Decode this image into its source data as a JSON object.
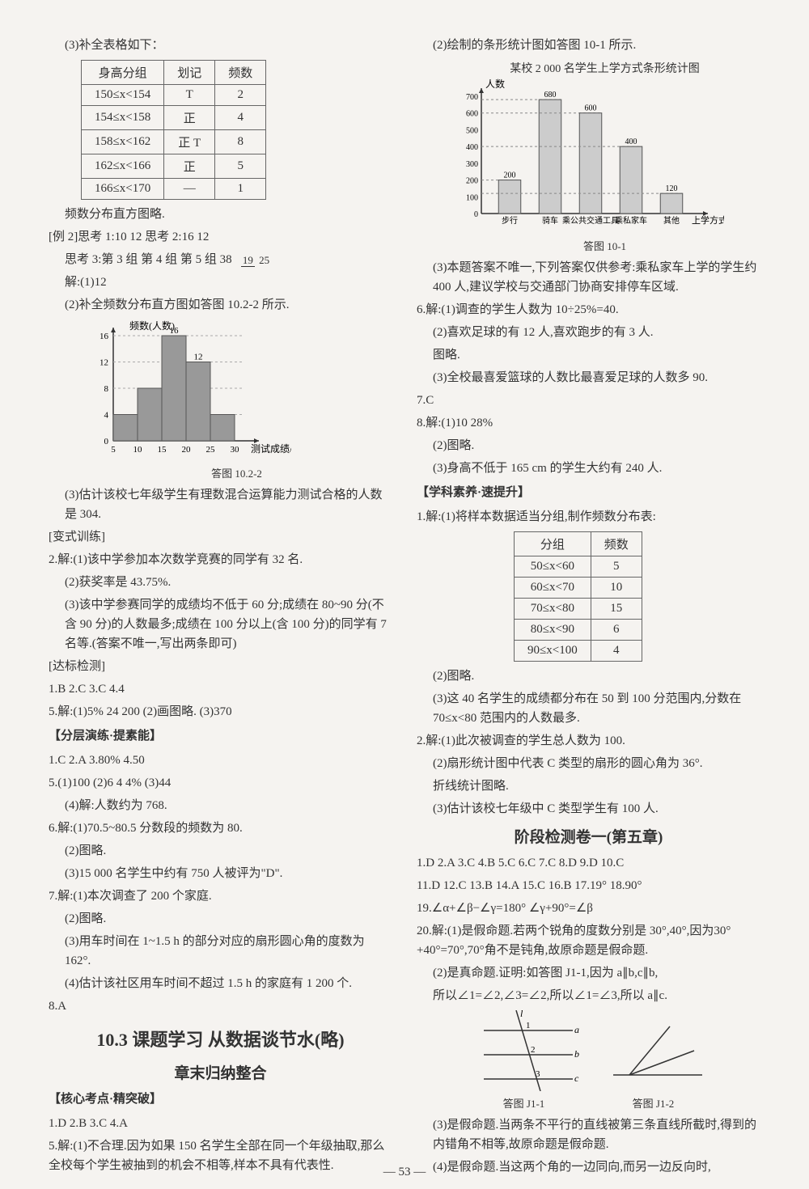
{
  "left": {
    "p3": "(3)补全表格如下：",
    "table1": {
      "headers": [
        "身高分组",
        "划记",
        "频数"
      ],
      "rows": [
        [
          "150≤x<154",
          "T",
          "2"
        ],
        [
          "154≤x<158",
          "正",
          "4"
        ],
        [
          "158≤x<162",
          "正 T",
          "8"
        ],
        [
          "162≤x<166",
          "正",
          "5"
        ],
        [
          "166≤x<170",
          "—",
          "1"
        ]
      ]
    },
    "freq_note": "频数分布直方图略.",
    "ex2": "[例 2]思考 1:10  12  思考 2:16  12",
    "think3_pre": "思考 3:第 3 组  第 4 组  第 5 组  38",
    "frac": {
      "num": "19",
      "den": "25"
    },
    "jie_1_12": "解:(1)12",
    "p2_fill": "(2)补全频数分布直方图如答图 10.2-2 所示.",
    "chart1": {
      "ylabel": "频数(人数)",
      "xlabel": "测试成绩/分",
      "caption": "答图 10.2-2",
      "yticks": [
        0,
        4,
        8,
        12,
        16
      ],
      "xticks": [
        5,
        10,
        15,
        20,
        25,
        30
      ],
      "bars": [
        4,
        8,
        16,
        12,
        4
      ],
      "bar_color": "#999999",
      "axis_color": "#333333",
      "grid_color": "#aaaaaa"
    },
    "p3_est": "(3)估计该校七年级学生有理数混合运算能力测试合格的人数是 304.",
    "bianshi": "[变式训练]",
    "l2_1": "2.解:(1)该中学参加本次数学竞赛的同学有 32 名.",
    "l2_2": "(2)获奖率是 43.75%.",
    "l2_3": "(3)该中学参赛同学的成绩均不低于 60 分;成绩在 80~90 分(不含 90 分)的人数最多;成绩在 100 分以上(含 100 分)的同学有 7 名等.(答案不唯一,写出两条即可)",
    "dabiao": "[达标检测]",
    "ans_row1": "1.B  2.C  3.C  4.4",
    "l5": "5.解:(1)5%  24  200  (2)画图略.  (3)370",
    "fenceng": "【分层演练·提素能】",
    "fc_row": "1.C  2.A  3.80%  4.50",
    "fc5": "5.(1)100  (2)6  4  4%  (3)44",
    "fc5_4": "(4)解:人数约为 768.",
    "fc6_1": "6.解:(1)70.5~80.5 分数段的频数为 80.",
    "fc6_2": "(2)图略.",
    "fc6_3": "(3)15 000 名学生中约有 750 人被评为\"D\".",
    "fc7_1": "7.解:(1)本次调查了 200 个家庭.",
    "fc7_2": "(2)图略.",
    "fc7_3": "(3)用车时间在 1~1.5 h 的部分对应的扇形圆心角的度数为 162°.",
    "fc7_4": "(4)估计该社区用车时间不超过 1.5 h 的家庭有 1 200 个.",
    "fc8": "8.A",
    "sec10_3": "10.3  课题学习  从数据谈节水(略)",
    "zhangmo": "章末归纳整合",
    "hexin": "【核心考点·精突破】",
    "hx_row": "1.D  2.B  3.C  4.A",
    "hx5": "5.解:(1)不合理.因为如果 150 名学生全部在同一个年级抽取,那么全校每个学生被抽到的机会不相等,样本不具有代表性."
  },
  "right": {
    "p2_chart": "(2)绘制的条形统计图如答图 10-1 所示.",
    "chart2": {
      "title": "某校 2 000 名学生上学方式条形统计图",
      "ylabel": "人数",
      "xlabel": "上学方式",
      "caption": "答图 10-1",
      "yticks": [
        0,
        100,
        200,
        300,
        400,
        500,
        600,
        700
      ],
      "categories": [
        "步行",
        "骑车",
        "乘公共交通工具",
        "乘私家车",
        "其他"
      ],
      "values": [
        200,
        680,
        600,
        400,
        120
      ],
      "bar_color": "#cccccc",
      "axis_color": "#333333",
      "grid_color": "#888888"
    },
    "p3_ans": "(3)本题答案不唯一,下列答案仅供参考:乘私家车上学的学生约 400 人,建议学校与交通部门协商安排停车区域.",
    "r6_1": "6.解:(1)调查的学生人数为 10÷25%=40.",
    "r6_2": "(2)喜欢足球的有 12 人,喜欢跑步的有 3 人.",
    "r6_2b": "图略.",
    "r6_3": "(3)全校最喜爱篮球的人数比最喜爱足球的人数多 90.",
    "r7": "7.C",
    "r8_1": "8.解:(1)10  28%",
    "r8_2": "(2)图略.",
    "r8_3": "(3)身高不低于 165 cm 的学生大约有 240 人.",
    "xueke": "【学科素养·速提升】",
    "xk1": "1.解:(1)将样本数据适当分组,制作频数分布表:",
    "table2": {
      "headers": [
        "分组",
        "频数"
      ],
      "rows": [
        [
          "50≤x<60",
          "5"
        ],
        [
          "60≤x<70",
          "10"
        ],
        [
          "70≤x<80",
          "15"
        ],
        [
          "80≤x<90",
          "6"
        ],
        [
          "90≤x<100",
          "4"
        ]
      ]
    },
    "xk1_2": "(2)图略.",
    "xk1_3": "(3)这 40 名学生的成绩都分布在 50 到 100 分范围内,分数在 70≤x<80 范围内的人数最多.",
    "xk2_1": "2.解:(1)此次被调查的学生总人数为 100.",
    "xk2_2": "(2)扇形统计图中代表 C 类型的扇形的圆心角为 36°.",
    "xk2_2b": "折线统计图略.",
    "xk2_3": "(3)估计该校七年级中 C 类型学生有 100 人.",
    "jieduan": "阶段检测卷一(第五章)",
    "jd_row1": "1.D  2.A  3.C  4.B  5.C  6.C  7.C  8.D  9.D  10.C",
    "jd_row2": "11.D  12.C  13.B  14.A  15.C  16.B  17.19°  18.90°",
    "jd_19": "19.∠α+∠β−∠γ=180°  ∠γ+90°=∠β",
    "jd20_1": "20.解:(1)是假命题.若两个锐角的度数分别是 30°,40°,因为30°+40°=70°,70°角不是钝角,故原命题是假命题.",
    "jd20_2": "(2)是真命题.证明:如答图 J1-1,因为 a∥b,c∥b,",
    "jd20_2b": "所以∠1=∠2,∠3=∠2,所以∠1=∠3,所以 a∥c.",
    "diag_cap1": "答图 J1-1",
    "diag_cap2": "答图 J1-2",
    "jd20_3": "(3)是假命题.当两条不平行的直线被第三条直线所截时,得到的内错角不相等,故原命题是假命题.",
    "jd20_4": "(4)是假命题.当这两个角的一边同向,而另一边反向时,"
  },
  "pagenum": "— 53 —"
}
